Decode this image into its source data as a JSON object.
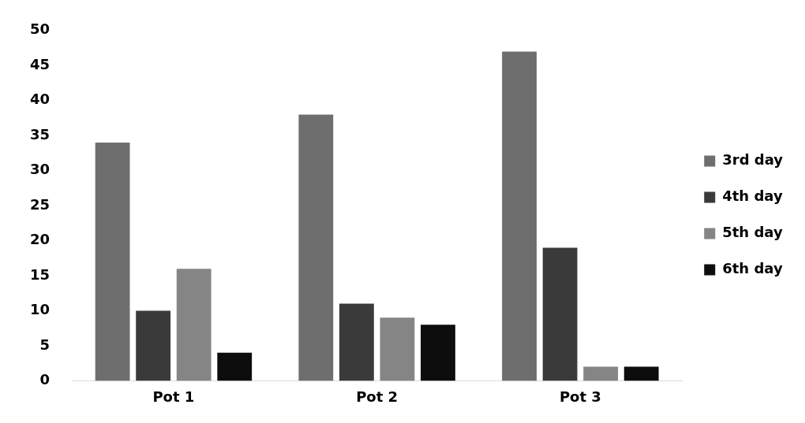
{
  "chart_data": {
    "type": "bar",
    "categories": [
      "Pot 1",
      "Pot 2",
      "Pot 3"
    ],
    "series": [
      {
        "name": "3rd day",
        "color": "#6e6e6e",
        "values": [
          34,
          38,
          47
        ]
      },
      {
        "name": "4th day",
        "color": "#3a3a3a",
        "values": [
          10,
          11,
          19
        ]
      },
      {
        "name": "5th day",
        "color": "#858585",
        "values": [
          16,
          9,
          2
        ]
      },
      {
        "name": "6th day",
        "color": "#0d0d0d",
        "values": [
          4,
          8,
          2
        ]
      }
    ],
    "ylim": [
      0,
      50
    ],
    "yticks": [
      0,
      5,
      10,
      15,
      20,
      25,
      30,
      35,
      40,
      45,
      50
    ],
    "grid": false,
    "legend": "right"
  }
}
